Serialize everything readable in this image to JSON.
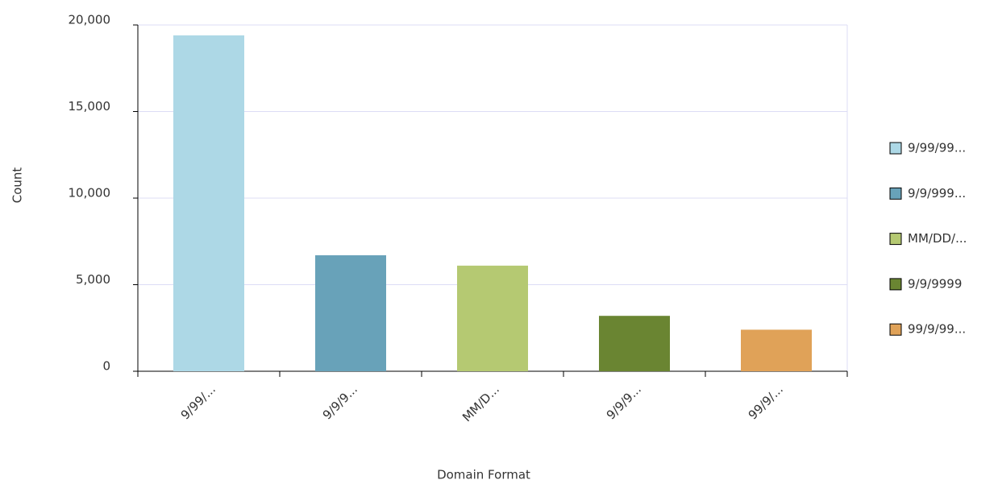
{
  "chart_data": {
    "type": "bar",
    "categories": [
      "9/99/...",
      "9/9/9...",
      "MM/D...",
      "9/9/9...",
      "99/9/..."
    ],
    "values": [
      19400,
      6700,
      6100,
      3200,
      2400
    ],
    "colors": [
      "#add8e6",
      "#68a2b9",
      "#b5c972",
      "#6a8532",
      "#e0a258"
    ],
    "legend": [
      "9/99/99...",
      "9/9/999...",
      "MM/DD/...",
      "9/9/9999",
      "99/9/99..."
    ],
    "xlabel": "Domain Format",
    "ylabel": "Count",
    "ylim": [
      0,
      20000
    ],
    "yticks": [
      0,
      {
        "value": 5000,
        "label": "5,000"
      },
      {
        "value": 10000,
        "label": "10,000"
      },
      {
        "value": 15000,
        "label": "15,000"
      },
      {
        "value": 20000,
        "label": "20,000"
      }
    ],
    "grid": true,
    "legend_position": "right"
  }
}
